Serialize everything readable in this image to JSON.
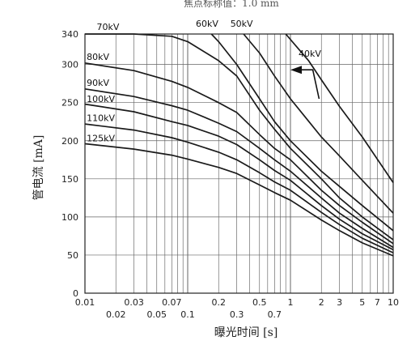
{
  "chart_data": {
    "type": "line",
    "title": "",
    "top_note": "焦点标称值：1.0 mm",
    "xlabel": "曝光时间 [s]",
    "ylabel": "管电流 [mA]",
    "xscale": "log",
    "xlim": [
      0.01,
      10
    ],
    "ylim": [
      0,
      340
    ],
    "x_ticks_row1": [
      "0.01",
      "0.03",
      "0.07",
      "0.2",
      "0.5",
      "1",
      "2",
      "3",
      "5",
      "7",
      "10"
    ],
    "x_ticks_row2": [
      "0.02",
      "0.05",
      "0.1",
      "0.3",
      "0.7"
    ],
    "y_ticks": [
      "0",
      "50",
      "100",
      "150",
      "200",
      "250",
      "300",
      "340"
    ],
    "legend": "inline labels",
    "grid": true,
    "series": [
      {
        "name": "40kV",
        "x": [
          0.9,
          1.5,
          2,
          3,
          5,
          10
        ],
        "y": [
          340,
          305,
          280,
          245,
          205,
          145
        ]
      },
      {
        "name": "50kV",
        "x": [
          0.35,
          0.5,
          0.7,
          1,
          2,
          3,
          5,
          10
        ],
        "y": [
          340,
          315,
          285,
          255,
          205,
          180,
          148,
          105
        ]
      },
      {
        "name": "60kV",
        "x": [
          0.17,
          0.2,
          0.3,
          0.5,
          0.7,
          1,
          2,
          3,
          5,
          10
        ],
        "y": [
          340,
          330,
          300,
          255,
          225,
          200,
          160,
          140,
          115,
          82
        ]
      },
      {
        "name": "70kV",
        "x": [
          0.01,
          0.03,
          0.07,
          0.1,
          0.2,
          0.3,
          0.5,
          0.7,
          1,
          2,
          3,
          5,
          10
        ],
        "y": [
          340,
          340,
          337,
          330,
          305,
          285,
          240,
          215,
          190,
          150,
          125,
          100,
          70
        ]
      },
      {
        "name": "80kV",
        "x": [
          0.01,
          0.03,
          0.07,
          0.1,
          0.2,
          0.3,
          0.5,
          0.7,
          1,
          2,
          3,
          5,
          10
        ],
        "y": [
          302,
          292,
          278,
          270,
          250,
          237,
          208,
          190,
          175,
          135,
          115,
          93,
          65
        ]
      },
      {
        "name": "90kV",
        "x": [
          0.01,
          0.03,
          0.07,
          0.1,
          0.2,
          0.3,
          0.5,
          0.7,
          1,
          2,
          3,
          5,
          10
        ],
        "y": [
          268,
          258,
          246,
          240,
          223,
          212,
          190,
          175,
          160,
          125,
          105,
          85,
          60
        ]
      },
      {
        "name": "100kV",
        "x": [
          0.01,
          0.03,
          0.07,
          0.1,
          0.2,
          0.3,
          0.5,
          0.7,
          1,
          2,
          3,
          5,
          10
        ],
        "y": [
          248,
          238,
          225,
          220,
          206,
          195,
          175,
          161,
          148,
          115,
          97,
          78,
          57
        ]
      },
      {
        "name": "110kV",
        "x": [
          0.01,
          0.03,
          0.07,
          0.1,
          0.2,
          0.3,
          0.5,
          0.7,
          1,
          2,
          3,
          5,
          10
        ],
        "y": [
          222,
          214,
          204,
          198,
          185,
          175,
          158,
          146,
          135,
          106,
          90,
          72,
          53
        ]
      },
      {
        "name": "125kV",
        "x": [
          0.01,
          0.03,
          0.07,
          0.1,
          0.2,
          0.3,
          0.5,
          0.7,
          1,
          2,
          3,
          5,
          10
        ],
        "y": [
          196,
          189,
          181,
          176,
          165,
          157,
          142,
          132,
          122,
          96,
          82,
          66,
          49
        ]
      }
    ]
  }
}
